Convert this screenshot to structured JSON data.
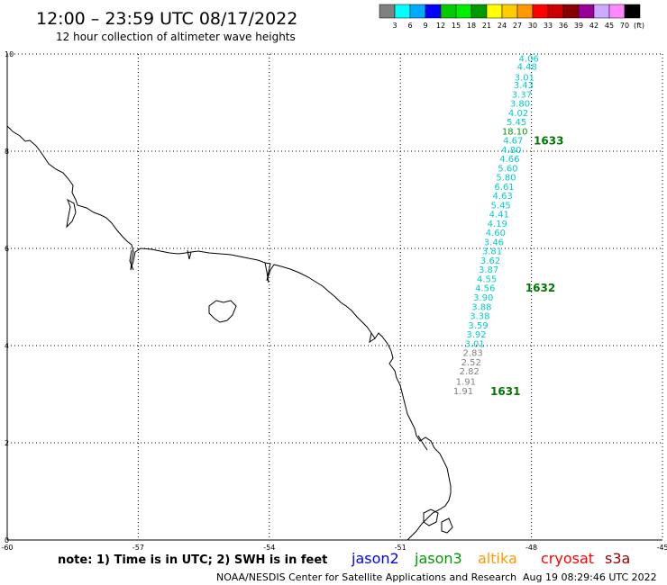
{
  "header": {
    "title": "12:00 – 23:59 UTC 08/17/2022",
    "subtitle": "12 hour collection of altimeter wave heights"
  },
  "colorbar": {
    "colors": [
      "#808080",
      "#00ffff",
      "#00aaff",
      "#0000ff",
      "#00cc00",
      "#00ee00",
      "#009900",
      "#ffff00",
      "#ffcc00",
      "#ff9900",
      "#ff0000",
      "#cc0000",
      "#880000",
      "#990099",
      "#ccaaff",
      "#ff88ff",
      "#000000"
    ],
    "labels": [
      "3",
      "6",
      "9",
      "12",
      "15",
      "18",
      "21",
      "24",
      "27",
      "30",
      "33",
      "36",
      "39",
      "42",
      "45",
      "70"
    ],
    "unit": "(ft)"
  },
  "chart_data": {
    "type": "scatter",
    "title": "12 hour collection of altimeter wave heights",
    "xlabel": "",
    "ylabel": "",
    "xlim": [
      -60,
      -45
    ],
    "ylim": [
      0,
      10
    ],
    "x_ticks": [
      "-60",
      "-57",
      "-54",
      "-51",
      "-48",
      "-45"
    ],
    "y_ticks": [
      "0",
      "2",
      "4",
      "6",
      "8",
      "10"
    ],
    "grid": true,
    "points": [
      {
        "lon": -48.06,
        "lat": 9.92,
        "label": "4.06",
        "color": "#00cccc"
      },
      {
        "lon": -48.1,
        "lat": 9.75,
        "label": "4.48",
        "color": "#00cccc"
      },
      {
        "lon": -48.16,
        "lat": 9.53,
        "label": "3.01",
        "color": "#00cccc"
      },
      {
        "lon": -48.18,
        "lat": 9.37,
        "label": "3.43",
        "color": "#00cccc"
      },
      {
        "lon": -48.22,
        "lat": 9.18,
        "label": "3.37",
        "color": "#00cccc"
      },
      {
        "lon": -48.26,
        "lat": 8.99,
        "label": "3.80",
        "color": "#00cccc"
      },
      {
        "lon": -48.3,
        "lat": 8.8,
        "label": "4.02",
        "color": "#00cccc"
      },
      {
        "lon": -48.34,
        "lat": 8.61,
        "label": "5.45",
        "color": "#00cccc"
      },
      {
        "lon": -48.38,
        "lat": 8.42,
        "label": "18.10",
        "color": "#009900"
      },
      {
        "lon": -48.42,
        "lat": 8.23,
        "label": "4.67",
        "color": "#00cccc"
      },
      {
        "lon": -48.46,
        "lat": 8.04,
        "label": "4.80",
        "color": "#00cccc"
      },
      {
        "lon": -48.5,
        "lat": 7.85,
        "label": "4.66",
        "color": "#00cccc"
      },
      {
        "lon": -48.54,
        "lat": 7.66,
        "label": "5.60",
        "color": "#00cccc"
      },
      {
        "lon": -48.58,
        "lat": 7.47,
        "label": "5.80",
        "color": "#00cccc"
      },
      {
        "lon": -48.62,
        "lat": 7.28,
        "label": "6.61",
        "color": "#00cccc"
      },
      {
        "lon": -48.66,
        "lat": 7.09,
        "label": "4.63",
        "color": "#00cccc"
      },
      {
        "lon": -48.7,
        "lat": 6.9,
        "label": "5.45",
        "color": "#00cccc"
      },
      {
        "lon": -48.74,
        "lat": 6.71,
        "label": "4.41",
        "color": "#00cccc"
      },
      {
        "lon": -48.78,
        "lat": 6.52,
        "label": "4.19",
        "color": "#00cccc"
      },
      {
        "lon": -48.82,
        "lat": 6.33,
        "label": "4.60",
        "color": "#00cccc"
      },
      {
        "lon": -48.86,
        "lat": 6.14,
        "label": "3.46",
        "color": "#00cccc"
      },
      {
        "lon": -48.9,
        "lat": 5.95,
        "label": "3.81",
        "color": "#00cccc"
      },
      {
        "lon": -48.94,
        "lat": 5.76,
        "label": "3.62",
        "color": "#00cccc"
      },
      {
        "lon": -48.98,
        "lat": 5.57,
        "label": "3.87",
        "color": "#00cccc"
      },
      {
        "lon": -49.02,
        "lat": 5.38,
        "label": "4.55",
        "color": "#00cccc"
      },
      {
        "lon": -49.06,
        "lat": 5.19,
        "label": "4.56",
        "color": "#00cccc"
      },
      {
        "lon": -49.1,
        "lat": 5.0,
        "label": "3.90",
        "color": "#00cccc"
      },
      {
        "lon": -49.14,
        "lat": 4.81,
        "label": "3.88",
        "color": "#00cccc"
      },
      {
        "lon": -49.18,
        "lat": 4.62,
        "label": "3.38",
        "color": "#00cccc"
      },
      {
        "lon": -49.22,
        "lat": 4.43,
        "label": "3.59",
        "color": "#00cccc"
      },
      {
        "lon": -49.26,
        "lat": 4.24,
        "label": "3.92",
        "color": "#00cccc"
      },
      {
        "lon": -49.3,
        "lat": 4.05,
        "label": "3.01",
        "color": "#00cccc"
      },
      {
        "lon": -49.34,
        "lat": 3.86,
        "label": "2.83",
        "color": "#808080"
      },
      {
        "lon": -49.38,
        "lat": 3.67,
        "label": "2.52",
        "color": "#808080"
      },
      {
        "lon": -49.42,
        "lat": 3.48,
        "label": "2.82",
        "color": "#808080"
      },
      {
        "lon": -49.5,
        "lat": 3.27,
        "label": "1.91",
        "color": "#808080"
      },
      {
        "lon": -49.56,
        "lat": 3.07,
        "label": "1.91",
        "color": "#808080"
      }
    ],
    "pass_labels": [
      {
        "lon": -47.95,
        "lat": 8.23,
        "label": "1633"
      },
      {
        "lon": -48.14,
        "lat": 5.2,
        "label": "1632"
      },
      {
        "lon": -48.94,
        "lat": 3.07,
        "label": "1631"
      }
    ]
  },
  "footer": {
    "note": "note:  1) Time is in UTC; 2) SWH is in feet",
    "satellites": [
      {
        "name": "jason2",
        "color": "#0000ff"
      },
      {
        "name": "jason3",
        "color": "#009900"
      },
      {
        "name": "altika",
        "color": "#ff9900"
      },
      {
        "name": "cryosat",
        "color": "#ff0000"
      },
      {
        "name": "s3a",
        "color": "#990000"
      }
    ],
    "credit": "NOAA/NESDIS Center for Satellite Applications and Research",
    "timestamp": "Aug 19 08:29:46 UTC 2022"
  }
}
